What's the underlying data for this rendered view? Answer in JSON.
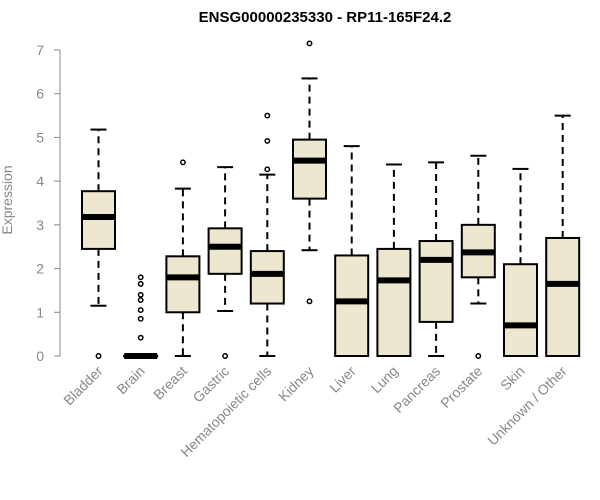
{
  "chart_data": {
    "type": "box",
    "title": "ENSG00000235330 - RP11-165F24.2",
    "xlabel": "",
    "ylabel": "Expression",
    "ylim": [
      0,
      7
    ],
    "yticks": [
      0,
      1,
      2,
      3,
      4,
      5,
      6,
      7
    ],
    "box_fill": "#ede7d0",
    "categories": [
      "Bladder",
      "Brain",
      "Breast",
      "Gastric",
      "Hematopoietic cells",
      "Kidney",
      "Liver",
      "Lung",
      "Pancreas",
      "Prostate",
      "Skin",
      "Unknown / Other"
    ],
    "boxes": [
      {
        "min": 1.15,
        "q1": 2.45,
        "median": 3.18,
        "q3": 3.77,
        "max": 5.18,
        "outliers": [
          0
        ]
      },
      {
        "min": 0,
        "q1": 0,
        "median": 0,
        "q3": 0,
        "max": 0,
        "outliers": [
          0.42,
          0.85,
          1.05,
          1.28,
          1.4,
          1.65,
          1.8
        ]
      },
      {
        "min": 0,
        "q1": 1.0,
        "median": 1.8,
        "q3": 2.28,
        "max": 3.83,
        "outliers": [
          4.43
        ]
      },
      {
        "min": 1.03,
        "q1": 1.88,
        "median": 2.5,
        "q3": 2.92,
        "max": 4.32,
        "outliers": [
          0
        ]
      },
      {
        "min": 0,
        "q1": 1.2,
        "median": 1.88,
        "q3": 2.4,
        "max": 4.15,
        "outliers": [
          4.27,
          4.92,
          5.5
        ]
      },
      {
        "min": 2.42,
        "q1": 3.6,
        "median": 4.47,
        "q3": 4.95,
        "max": 6.35,
        "outliers": [
          1.25,
          7.15
        ]
      },
      {
        "min": 0,
        "q1": 0,
        "median": 1.25,
        "q3": 2.3,
        "max": 4.8,
        "outliers": []
      },
      {
        "min": 0,
        "q1": 0,
        "median": 1.73,
        "q3": 2.45,
        "max": 4.38,
        "outliers": []
      },
      {
        "min": 0,
        "q1": 0.78,
        "median": 2.2,
        "q3": 2.63,
        "max": 4.43,
        "outliers": []
      },
      {
        "min": 1.2,
        "q1": 1.8,
        "median": 2.37,
        "q3": 3.0,
        "max": 4.58,
        "outliers": [
          0
        ]
      },
      {
        "min": 0,
        "q1": 0,
        "median": 0.7,
        "q3": 2.1,
        "max": 4.28,
        "outliers": []
      },
      {
        "min": 0,
        "q1": 0,
        "median": 1.65,
        "q3": 2.7,
        "max": 5.5,
        "outliers": []
      }
    ]
  }
}
